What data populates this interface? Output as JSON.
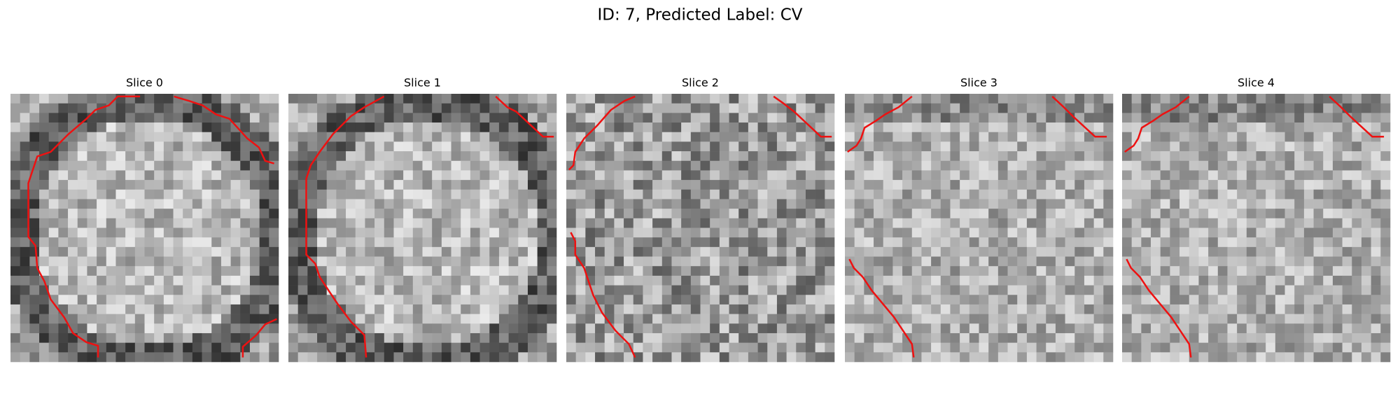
{
  "title": "ID: 7, Predicted Label: CV",
  "panels": [
    {
      "title": "Slice 0"
    },
    {
      "title": "Slice 1"
    },
    {
      "title": "Slice 2"
    },
    {
      "title": "Slice 3"
    },
    {
      "title": "Slice 4"
    }
  ]
}
